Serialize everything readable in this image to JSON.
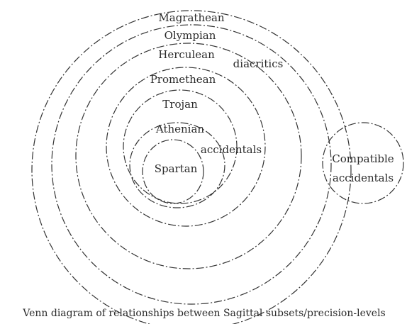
{
  "diagram": {
    "type": "venn",
    "nested_sets": [
      "Magrathean",
      "Olympian",
      "Herculean",
      "Promethean",
      "Trojan",
      "Athenian",
      "Spartan"
    ],
    "region_labels": {
      "diacritics": "diacritics",
      "accidentals": "accidentals",
      "compatible_line1": "Compatible",
      "compatible_line2": "accidentals"
    },
    "caption": "Venn diagram of relationships between Sagittal subsets/precision-levels"
  }
}
